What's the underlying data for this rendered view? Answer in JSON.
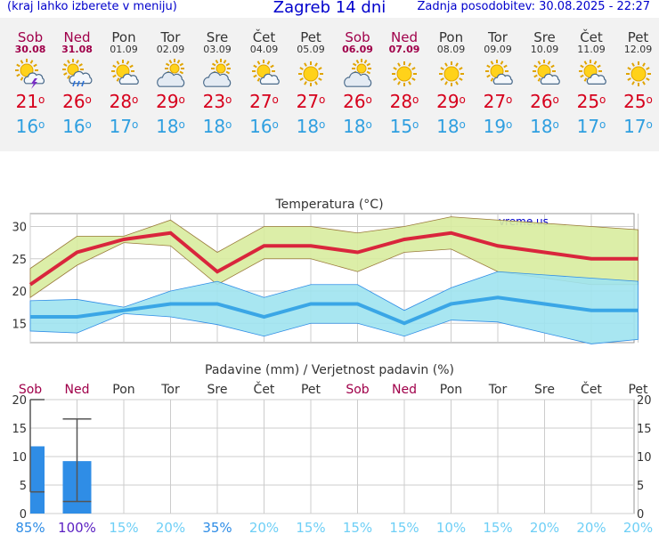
{
  "header": {
    "menu_hint": "(kraj lahko izberete v meniju)",
    "title": "Zagreb 14 dni",
    "updated": "Zadnja posodobitev: 30.08.2025 - 22:27"
  },
  "days": [
    {
      "name": "Sob",
      "date": "30.08",
      "weekend": true,
      "icon": "thunder-sun-icon",
      "tmax": "21",
      "tmin": "16"
    },
    {
      "name": "Ned",
      "date": "31.08",
      "weekend": true,
      "icon": "rain-sun-icon",
      "tmax": "26",
      "tmin": "16"
    },
    {
      "name": "Pon",
      "date": "01.09",
      "weekend": false,
      "icon": "sun-cloud-icon",
      "tmax": "28",
      "tmin": "17"
    },
    {
      "name": "Tor",
      "date": "02.09",
      "weekend": false,
      "icon": "cloud-sun-icon",
      "tmax": "29",
      "tmin": "18"
    },
    {
      "name": "Sre",
      "date": "03.09",
      "weekend": false,
      "icon": "cloud-sun-icon",
      "tmax": "23",
      "tmin": "18"
    },
    {
      "name": "Čet",
      "date": "04.09",
      "weekend": false,
      "icon": "sun-cloud-icon",
      "tmax": "27",
      "tmin": "16"
    },
    {
      "name": "Pet",
      "date": "05.09",
      "weekend": false,
      "icon": "sun-icon",
      "tmax": "27",
      "tmin": "18"
    },
    {
      "name": "Sob",
      "date": "06.09",
      "weekend": true,
      "icon": "cloud-sun-icon",
      "tmax": "26",
      "tmin": "18"
    },
    {
      "name": "Ned",
      "date": "07.09",
      "weekend": true,
      "icon": "sun-icon",
      "tmax": "28",
      "tmin": "15"
    },
    {
      "name": "Pon",
      "date": "08.09",
      "weekend": false,
      "icon": "sun-icon",
      "tmax": "29",
      "tmin": "18"
    },
    {
      "name": "Tor",
      "date": "09.09",
      "weekend": false,
      "icon": "sun-cloud-icon",
      "tmax": "27",
      "tmin": "19"
    },
    {
      "name": "Sre",
      "date": "10.09",
      "weekend": false,
      "icon": "sun-cloud-icon",
      "tmax": "26",
      "tmin": "18"
    },
    {
      "name": "Čet",
      "date": "11.09",
      "weekend": false,
      "icon": "sun-cloud-icon",
      "tmax": "25",
      "tmin": "17"
    },
    {
      "name": "Pet",
      "date": "12.09",
      "weekend": false,
      "icon": "sun-icon",
      "tmax": "25",
      "tmin": "17"
    }
  ],
  "colors": {
    "weekend": "#a0004a",
    "tmax": "#d6001c",
    "tmin": "#2f9fe0",
    "max_band": "#d8ec9e",
    "min_band": "#9fe3ef",
    "precip_bar": "#2f8de6",
    "prob_low": "#6ecff6",
    "prob_mid": "#2f8de6",
    "prob_high": "#5a1fc2"
  },
  "chart_data": [
    {
      "type": "line",
      "title": "Temperatura (°C)",
      "watermark": "vreme.us",
      "categories": [
        "Sob",
        "Ned",
        "Pon",
        "Tor",
        "Sre",
        "Čet",
        "Pet",
        "Sob",
        "Ned",
        "Pon",
        "Tor",
        "Sre",
        "Čet",
        "Pet"
      ],
      "ylim": [
        12,
        32
      ],
      "yticks": [
        15,
        20,
        25,
        30
      ],
      "grid": true,
      "series": [
        {
          "role": "max",
          "values": [
            21,
            26,
            28,
            29,
            23,
            27,
            27,
            26,
            28,
            29,
            27,
            26,
            25,
            25
          ],
          "band_low": [
            19,
            24,
            27.5,
            27,
            21,
            25,
            25,
            23,
            26,
            26.5,
            23,
            22,
            21,
            21
          ],
          "band_high": [
            23.5,
            28.5,
            28.5,
            31,
            26,
            30,
            30,
            29,
            30,
            31.5,
            31,
            30.5,
            30,
            29.5
          ]
        },
        {
          "role": "min",
          "values": [
            16,
            16,
            17,
            18,
            18,
            16,
            18,
            18,
            15,
            18,
            19,
            18,
            17,
            17
          ],
          "band_low": [
            13.8,
            13.5,
            16.5,
            16,
            14.8,
            13,
            15,
            15,
            13,
            15.5,
            15.2,
            13.5,
            11.8,
            12.5
          ],
          "band_high": [
            18.5,
            18.7,
            17.5,
            20,
            21.5,
            19,
            21,
            21,
            17,
            20.5,
            23,
            22.5,
            22,
            21.5
          ]
        }
      ]
    },
    {
      "type": "bar",
      "title": "Padavine (mm) / Verjetnost padavin (%)",
      "categories": [
        "Sob",
        "Ned",
        "Pon",
        "Tor",
        "Sre",
        "Čet",
        "Pet",
        "Sob",
        "Ned",
        "Pon",
        "Tor",
        "Sre",
        "Čet",
        "Pet"
      ],
      "ylim": [
        0,
        20
      ],
      "yticks": [
        0,
        5,
        10,
        15,
        20
      ],
      "values": [
        11.8,
        9.2,
        0,
        0,
        0,
        0,
        0,
        0,
        0,
        0,
        0,
        0,
        0,
        0
      ],
      "range_low": [
        3.8,
        2.1,
        null,
        null,
        null,
        null,
        null,
        null,
        null,
        null,
        null,
        null,
        null,
        null
      ],
      "range_high": [
        20,
        16.6,
        null,
        null,
        null,
        null,
        null,
        null,
        null,
        null,
        null,
        null,
        null,
        null
      ],
      "probability": [
        "85%",
        "100%",
        "15%",
        "20%",
        "35%",
        "20%",
        "15%",
        "15%",
        "15%",
        "10%",
        "15%",
        "20%",
        "20%",
        "20%"
      ],
      "probability_values": [
        85,
        100,
        15,
        20,
        35,
        20,
        15,
        15,
        15,
        10,
        15,
        20,
        20,
        20
      ]
    }
  ]
}
